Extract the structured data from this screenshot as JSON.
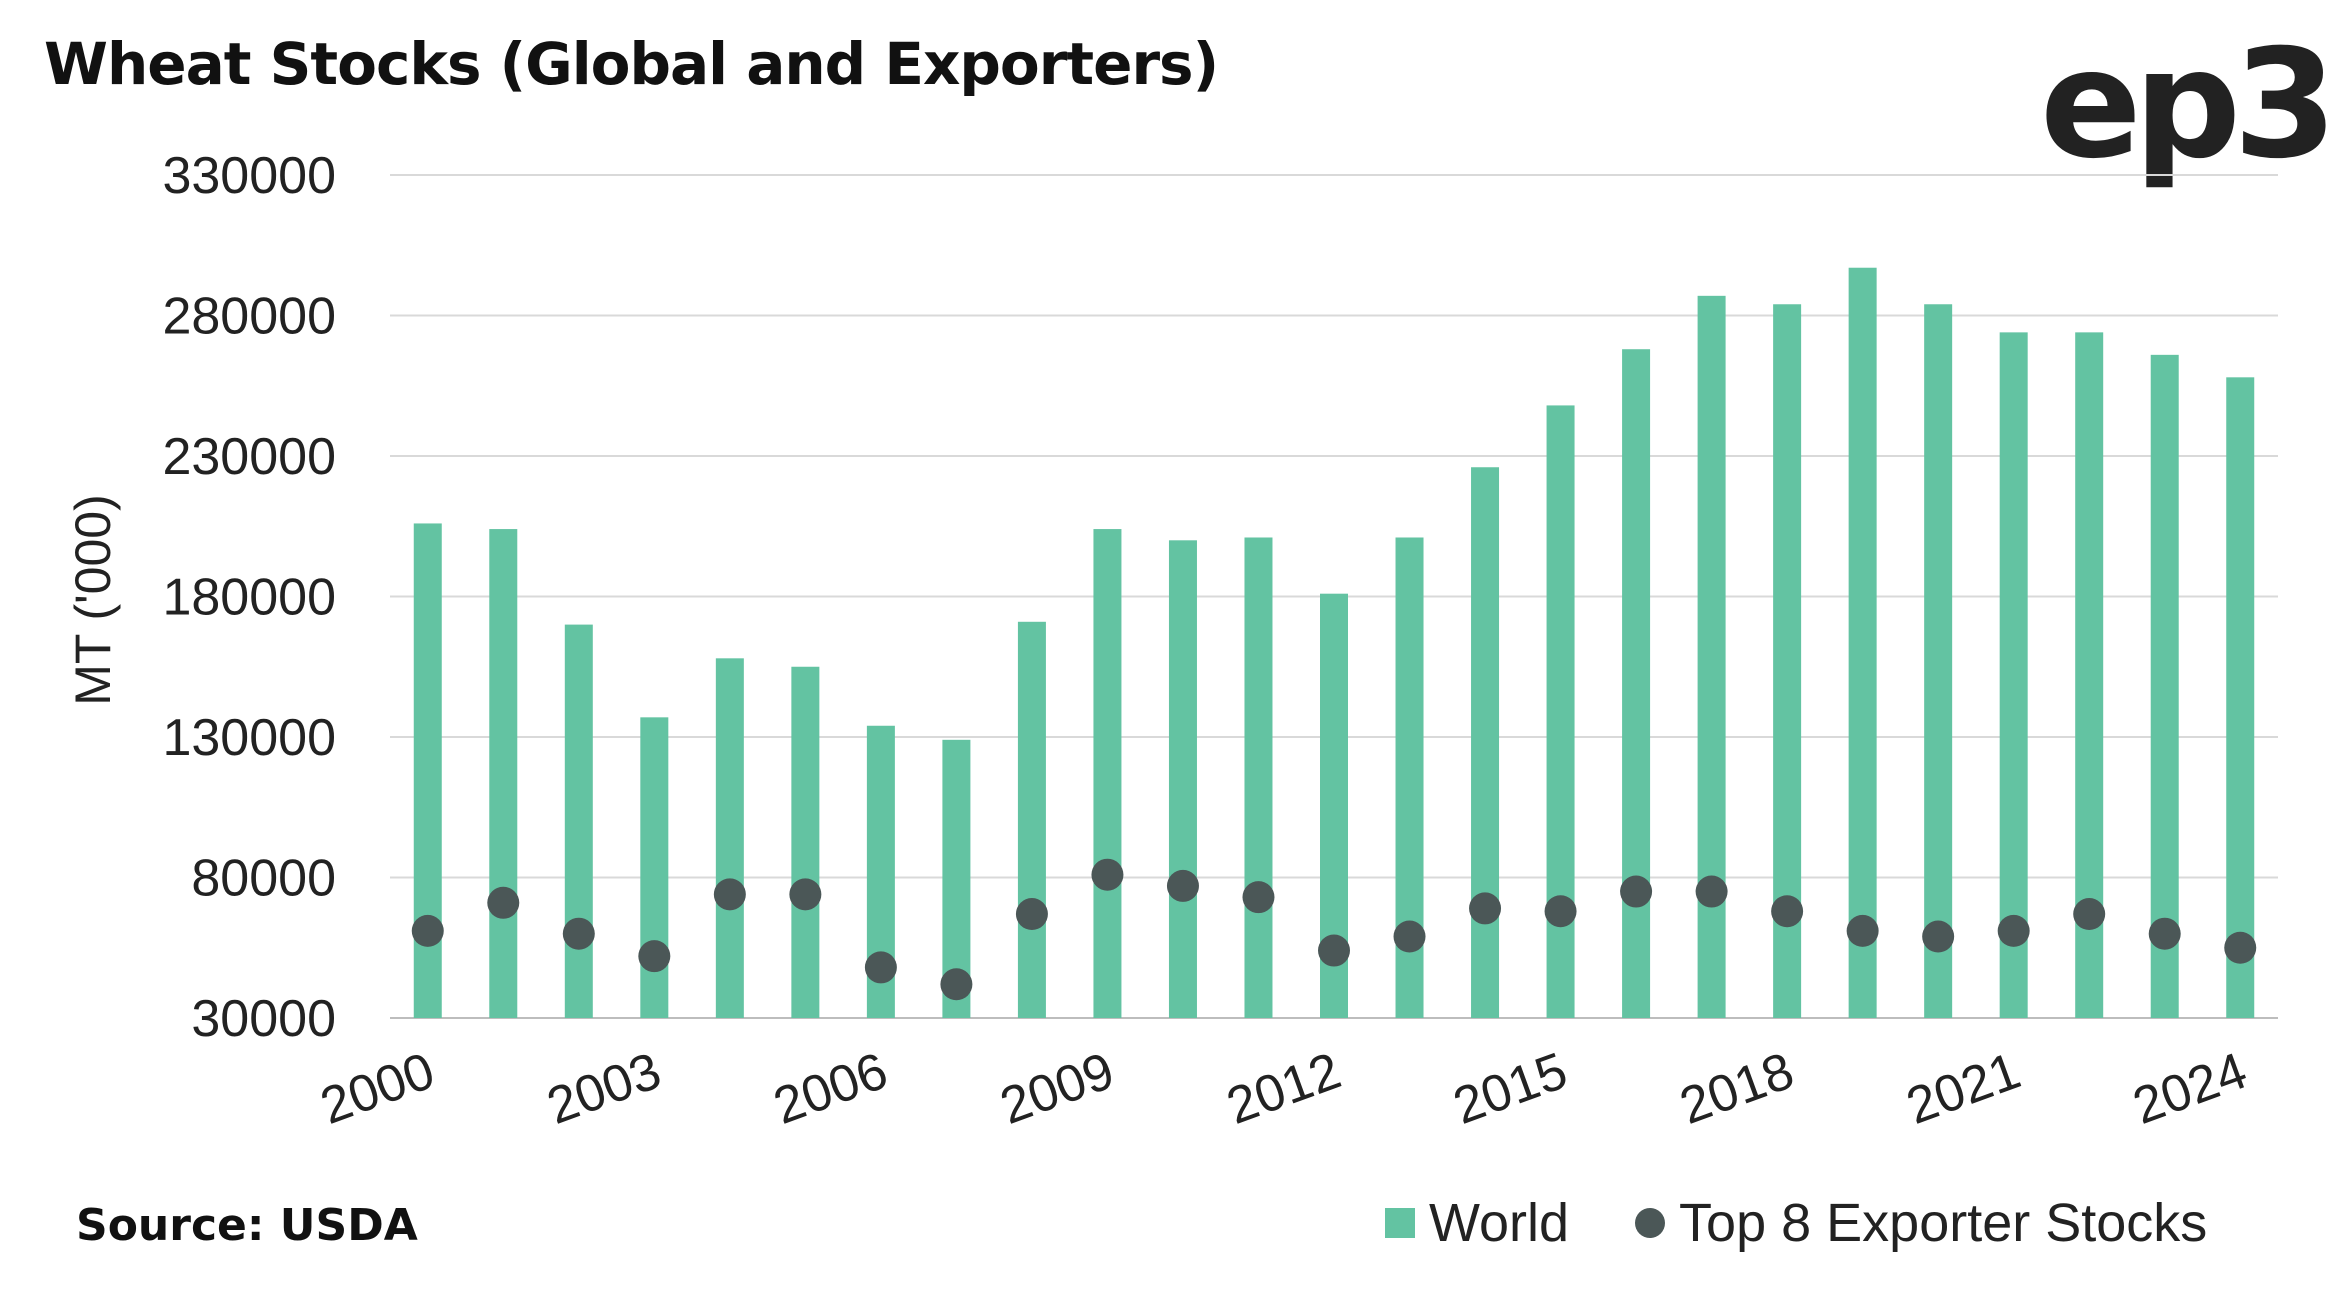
{
  "title": "Wheat Stocks (Global and Exporters)",
  "logo": "ep3",
  "source": "Source: USDA",
  "chart_data": {
    "type": "bar",
    "ylabel": "MT ('000)",
    "ylim": [
      30000,
      330000
    ],
    "yticks": [
      30000,
      80000,
      130000,
      180000,
      230000,
      280000,
      330000
    ],
    "grid": true,
    "legend_position": "bottom-right",
    "categories": [
      "2000",
      "2001",
      "2002",
      "2003",
      "2004",
      "2005",
      "2006",
      "2007",
      "2008",
      "2009",
      "2010",
      "2011",
      "2012",
      "2013",
      "2014",
      "2015",
      "2016",
      "2017",
      "2018",
      "2019",
      "2020",
      "2021",
      "2022",
      "2023",
      "2024"
    ],
    "x_tick_labels": [
      "2000",
      "2003",
      "2006",
      "2009",
      "2012",
      "2015",
      "2018",
      "2021",
      "2024"
    ],
    "series": [
      {
        "name": "World",
        "type": "bar",
        "color": "#63c3a2",
        "values": [
          206000,
          204000,
          170000,
          137000,
          158000,
          155000,
          134000,
          129000,
          171000,
          204000,
          200000,
          201000,
          181000,
          201000,
          226000,
          248000,
          268000,
          287000,
          284000,
          297000,
          284000,
          274000,
          274000,
          266000,
          258000
        ]
      },
      {
        "name": "Top 8 Exporter Stocks",
        "type": "scatter",
        "color": "#4b5757",
        "values": [
          61000,
          71000,
          60000,
          52000,
          74000,
          74000,
          48000,
          42000,
          67000,
          81000,
          77000,
          73000,
          54000,
          59000,
          69000,
          68000,
          75000,
          75000,
          68000,
          61000,
          59000,
          61000,
          67000,
          60000,
          55000
        ]
      }
    ]
  }
}
